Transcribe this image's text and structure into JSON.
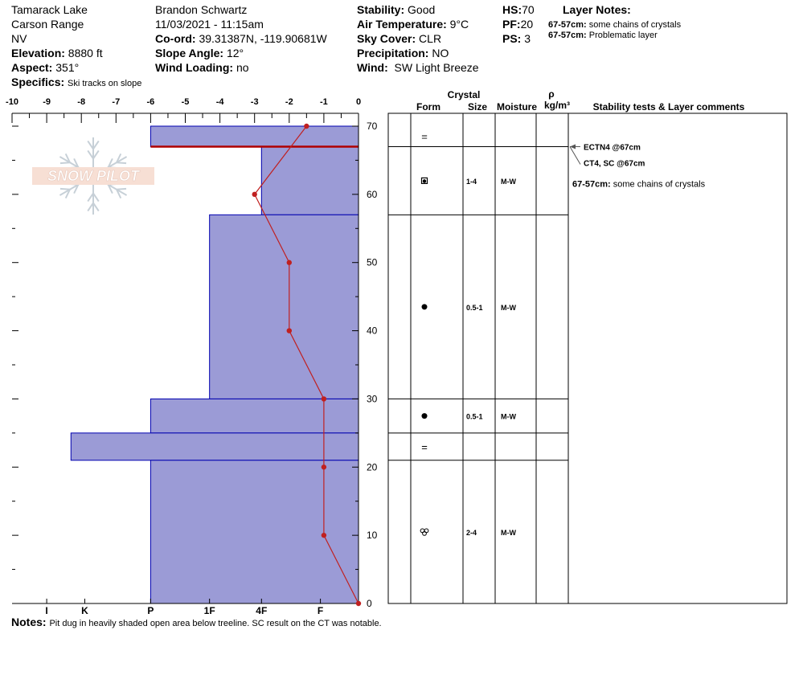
{
  "header": {
    "location": "Tamarack Lake",
    "range": "Carson Range",
    "state": "NV",
    "elevation_label": "Elevation:",
    "elevation": "8880 ft",
    "aspect_label": "Aspect:",
    "aspect": "351°",
    "specifics_label": "Specifics:",
    "specifics": "Ski tracks on slope",
    "observer": "Brandon Schwartz",
    "datetime": "11/03/2021 - 11:15am",
    "coord_label": "Co-ord:",
    "coord": "39.31387N, -119.90681W",
    "slope_label": "Slope Angle:",
    "slope": "12°",
    "wind_loading_label": "Wind Loading:",
    "wind_loading": "no",
    "stability_label": "Stability:",
    "stability": "Good",
    "air_temp_label": "Air Temperature:",
    "air_temp": "9°C",
    "sky_label": "Sky Cover:",
    "sky": "CLR",
    "precip_label": "Precipitation:",
    "precip": "NO",
    "wind_label": "Wind:",
    "wind": "SW Light Breeze",
    "hs_label": "HS:",
    "hs": "70",
    "pf_label": "PF:",
    "pf": "20",
    "ps_label": "PS:",
    "ps": "3",
    "layer_notes_title": "Layer Notes:",
    "layer_notes": [
      {
        "range": "67-57cm:",
        "text": "some chains of crystals"
      },
      {
        "range": "67-57cm:",
        "text": "Problematic layer"
      }
    ]
  },
  "notes_label": "Notes:",
  "notes": "Pit dug in heavily shaded open area below treeline. SC result on the CT was notable.",
  "logo_text": "SNOW PILOT",
  "table_headers": {
    "crystal": "Crystal",
    "form": "Form",
    "size": "Size",
    "moisture": "Moisture",
    "rho": "ρ",
    "density": "kg/m³",
    "stability": "Stability tests & Layer comments"
  },
  "colors": {
    "hardness_fill": "#9b9bd6",
    "hardness_stroke": "#0000b0",
    "temp_line": "#c02020",
    "problem_line": "#b00000"
  },
  "chart_data": {
    "type": "snow-profile",
    "temp_axis": {
      "ticks": [
        "-10",
        "-9",
        "-8",
        "-7",
        "-6",
        "-5",
        "-4",
        "-3",
        "-2",
        "-1",
        "0"
      ],
      "range": [
        -10,
        0
      ]
    },
    "hardness_axis": {
      "ticks": [
        "I",
        "K",
        "P",
        "1F",
        "4F",
        "F"
      ]
    },
    "depth_axis": {
      "ticks": [
        "0",
        "10",
        "20",
        "30",
        "40",
        "50",
        "60",
        "70"
      ],
      "range": [
        0,
        70
      ]
    },
    "layers": [
      {
        "top": 70,
        "bottom": 67,
        "hardness": "P",
        "hardness_value": 6,
        "form": "=",
        "size": "",
        "moisture": ""
      },
      {
        "top": 67,
        "bottom": 57,
        "hardness": "4F-",
        "hardness_value": 2.8,
        "form": "faceted-rounded",
        "size": "1-4",
        "moisture": "M-W"
      },
      {
        "top": 57,
        "bottom": 30,
        "hardness": "1F+",
        "hardness_value": 4.3,
        "form": "rounded",
        "size": "0.5-1",
        "moisture": "M-W"
      },
      {
        "top": 30,
        "bottom": 25,
        "hardness": "P",
        "hardness_value": 6,
        "form": "rounded",
        "size": "0.5-1",
        "moisture": "M-W"
      },
      {
        "top": 25,
        "bottom": 21,
        "hardness": "K+",
        "hardness_value": 8.3,
        "form": "=",
        "size": "",
        "moisture": ""
      },
      {
        "top": 21,
        "bottom": 0,
        "hardness": "P",
        "hardness_value": 6,
        "form": "melt-form",
        "size": "2-4",
        "moisture": "M-W"
      }
    ],
    "temperature": [
      {
        "depth": 70,
        "temp": -1.5
      },
      {
        "depth": 60,
        "temp": -3
      },
      {
        "depth": 50,
        "temp": -2
      },
      {
        "depth": 40,
        "temp": -2
      },
      {
        "depth": 30,
        "temp": -1
      },
      {
        "depth": 20,
        "temp": -1
      },
      {
        "depth": 10,
        "temp": -1
      },
      {
        "depth": 0,
        "temp": 0
      }
    ],
    "problem_layer_depth": 67,
    "stability_tests": [
      {
        "depth": 67,
        "text": "ECTN4 @67cm"
      },
      {
        "depth": 67,
        "text": "CT4, SC @67cm"
      }
    ],
    "layer_comment": {
      "range": "67-57cm:",
      "text": "some chains of crystals"
    }
  }
}
